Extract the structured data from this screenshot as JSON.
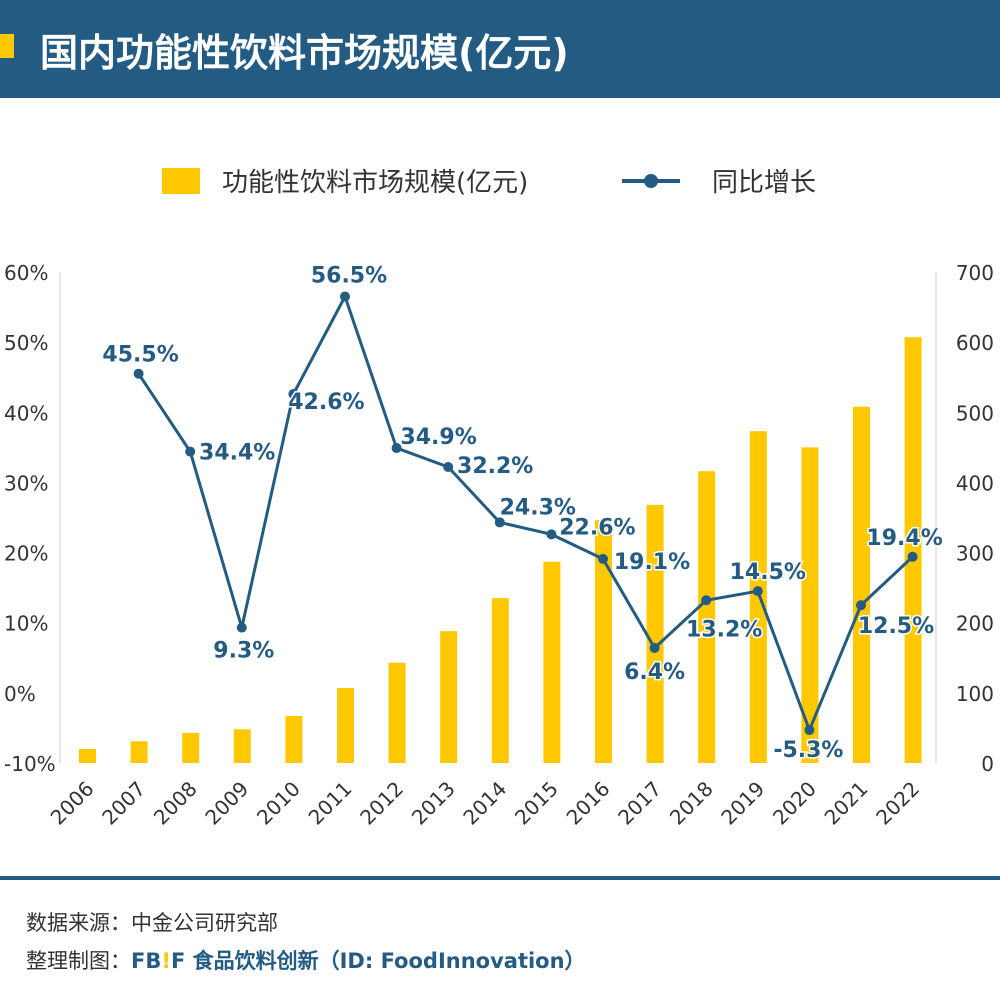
{
  "header": {
    "title": "国内功能性饮料市场规模(亿元)"
  },
  "footer": {
    "source": "数据来源：中金公司研究部",
    "maker_label": "整理制图：",
    "brand_fb": "FB",
    "brand_ex": "!",
    "brand_f": "F",
    "brand_text": "食品饮料创新（ID: FoodInnovation）"
  },
  "colors": {
    "bar": "#ffc800",
    "line": "#245b82",
    "header": "#245b82"
  },
  "chart_data": {
    "type": "bar+line",
    "categories": [
      "2006",
      "2007",
      "2008",
      "2009",
      "2010",
      "2011",
      "2012",
      "2013",
      "2014",
      "2015",
      "2016",
      "2017",
      "2018",
      "2019",
      "2020",
      "2021",
      "2022"
    ],
    "series": [
      {
        "name": "功能性饮料市场规模(亿元)",
        "type": "bar",
        "axis": "right",
        "values": [
          20,
          31,
          43,
          48,
          67,
          107,
          143,
          188,
          235,
          287,
          346,
          368,
          416,
          473,
          450,
          508,
          607
        ]
      },
      {
        "name": "同比增长",
        "type": "line",
        "axis": "left",
        "values": [
          null,
          45.5,
          34.4,
          9.3,
          42.6,
          56.5,
          34.9,
          32.2,
          24.3,
          22.6,
          19.1,
          6.4,
          13.2,
          14.5,
          -5.3,
          12.5,
          19.4
        ],
        "labels": [
          "",
          "45.5%",
          "34.4%",
          "9.3%",
          "42.6%",
          "56.5%",
          "34.9%",
          "32.2%",
          "24.3%",
          "22.6%",
          "19.1%",
          "6.4%",
          "13.2%",
          "14.5%",
          "-5.3%",
          "12.5%",
          "19.4%"
        ]
      }
    ],
    "left_axis": {
      "ylim": [
        -10,
        60
      ],
      "ticks": [
        "-10%",
        "0%",
        "10%",
        "20%",
        "30%",
        "40%",
        "50%",
        "60%"
      ]
    },
    "right_axis": {
      "ylim": [
        0,
        700
      ],
      "ticks": [
        "0",
        "100",
        "200",
        "300",
        "400",
        "500",
        "600",
        "700"
      ]
    },
    "legend": "top-center",
    "grid": false
  }
}
